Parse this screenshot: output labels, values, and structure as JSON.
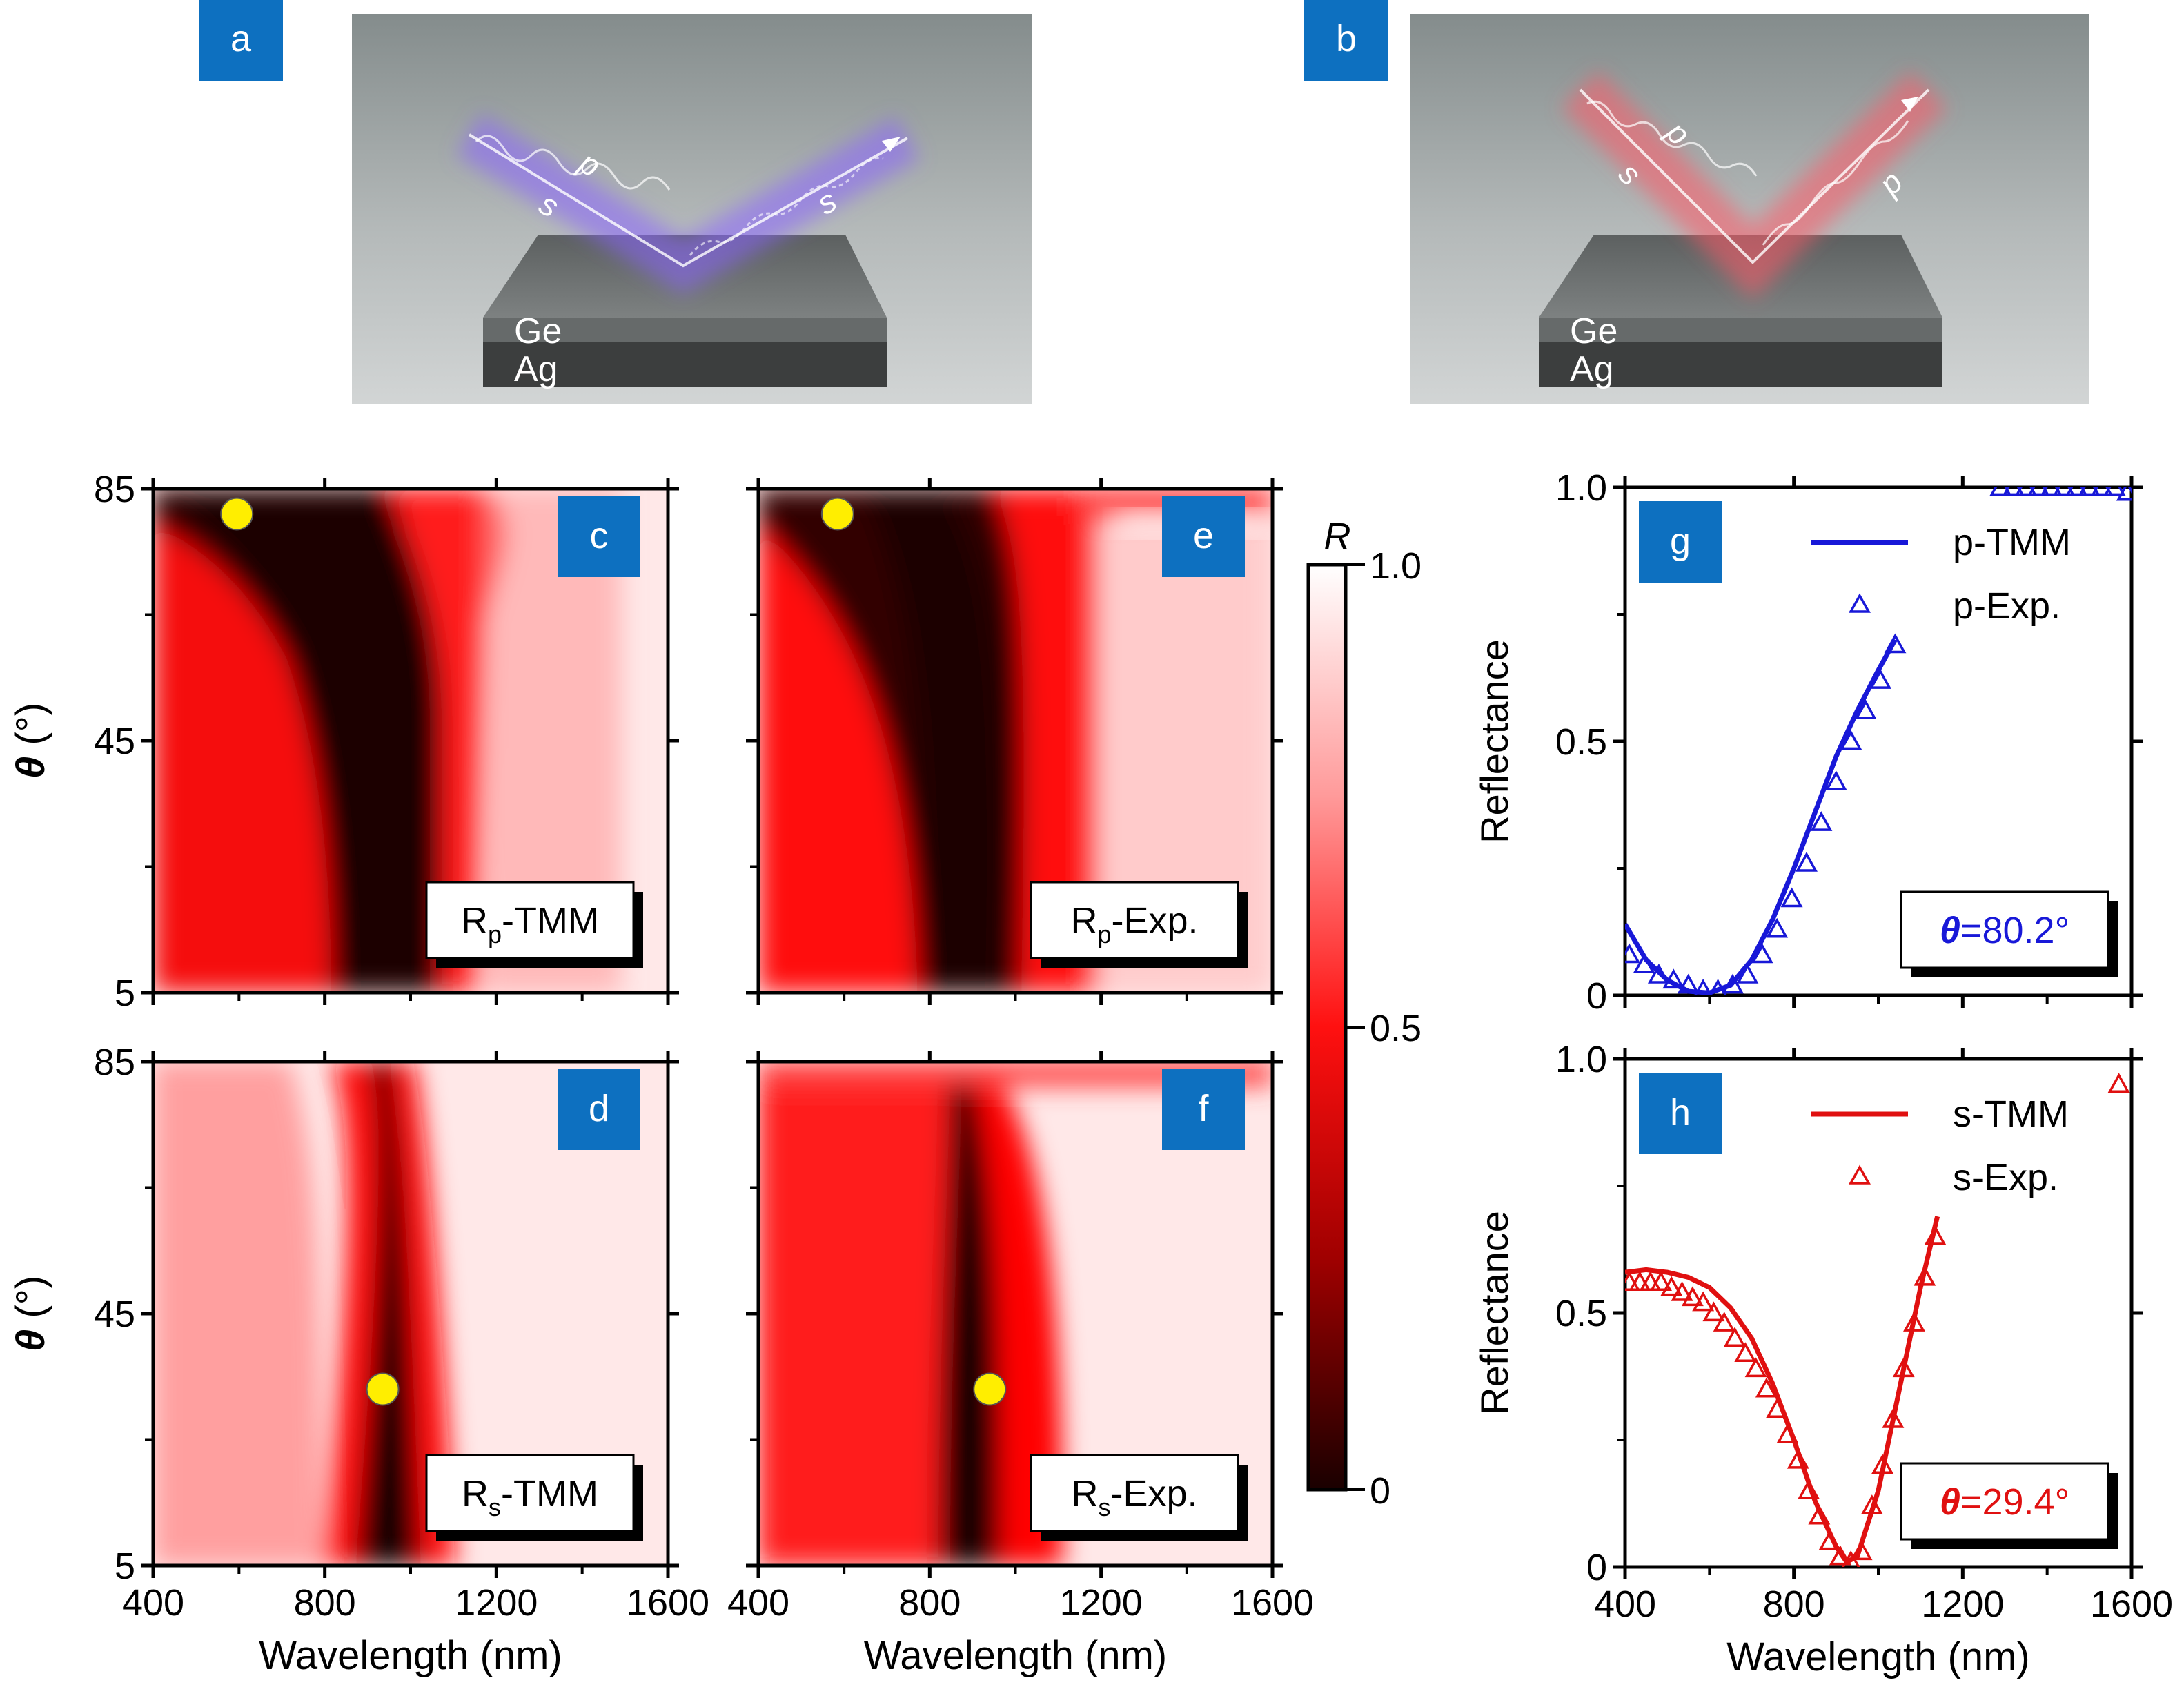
{
  "panel_letters": {
    "a": "a",
    "b": "b",
    "c": "c",
    "d": "d",
    "e": "e",
    "f": "f",
    "g": "g",
    "h": "h"
  },
  "schematic_a": {
    "incident_labels": [
      "p",
      "s"
    ],
    "reflected_label": "s",
    "layer_top": "Ge",
    "layer_bottom": "Ag",
    "beam_color": "#8a64ff"
  },
  "schematic_b": {
    "incident_labels": [
      "p",
      "s"
    ],
    "reflected_label": "p",
    "layer_top": "Ge",
    "layer_bottom": "Ag",
    "beam_color": "#ff5a66"
  },
  "colors": {
    "label_box": "#0d70c0",
    "map_dark": "#1a0000",
    "map_red": "#ff0000",
    "map_light": "#ffffff",
    "p_series": "#1818d8",
    "s_series": "#e01010"
  },
  "colorbar": {
    "label": "R",
    "ticks": [
      "1.0",
      "0.5",
      "0"
    ],
    "range": [
      0,
      1
    ]
  },
  "maps": {
    "xlabel": "Wavelength (nm)",
    "ylabel_symbol": "θ",
    "ylabel_unit": " (°)",
    "xticks": [
      "400",
      "800",
      "1200",
      "1600"
    ],
    "yticks": [
      "85",
      "45",
      "5"
    ],
    "xlim": [
      400,
      1600
    ],
    "ylim": [
      5,
      85
    ],
    "c": {
      "name_main": "R",
      "name_sub": "p",
      "name_tail": "-TMM",
      "marker": [
        595,
        81
      ]
    },
    "e": {
      "name_main": "R",
      "name_sub": "p",
      "name_tail": "-Exp.",
      "marker": [
        585,
        81
      ]
    },
    "d": {
      "name_main": "R",
      "name_sub": "s",
      "name_tail": "-TMM",
      "marker": [
        935,
        33
      ]
    },
    "f": {
      "name_main": "R",
      "name_sub": "s",
      "name_tail": "-Exp.",
      "marker": [
        940,
        33
      ]
    }
  },
  "chart_data": [
    {
      "type": "line",
      "panel": "g",
      "xlabel": "Wavelength (nm)",
      "ylabel": "Reflectance",
      "xlim": [
        400,
        1600
      ],
      "ylim": [
        0,
        1
      ],
      "xticks": [
        "400",
        "800",
        "1200",
        "1600"
      ],
      "yticks": [
        "1.0",
        "0.5",
        "0"
      ],
      "angle_symbol": "θ",
      "angle_value": "=80.2°",
      "series": [
        {
          "name": "p-TMM",
          "kind": "line",
          "x": [
            400,
            450,
            500,
            550,
            600,
            650,
            700,
            750,
            800,
            850,
            900,
            950,
            1000,
            1040
          ],
          "y": [
            0.14,
            0.07,
            0.03,
            0.008,
            0.005,
            0.02,
            0.07,
            0.15,
            0.25,
            0.36,
            0.47,
            0.56,
            0.64,
            0.7
          ]
        },
        {
          "name": "p-Exp.",
          "kind": "marker",
          "x": [
            410,
            445,
            480,
            515,
            550,
            585,
            620,
            655,
            690,
            725,
            760,
            795,
            830,
            865,
            900,
            935,
            970,
            1005,
            1040
          ],
          "y": [
            0.08,
            0.06,
            0.04,
            0.03,
            0.02,
            0.01,
            0.01,
            0.02,
            0.04,
            0.08,
            0.13,
            0.19,
            0.26,
            0.34,
            0.42,
            0.5,
            0.56,
            0.62,
            0.69
          ]
        },
        {
          "name": "",
          "kind": "marker",
          "x": [
            1290,
            1320,
            1350,
            1380,
            1410,
            1440,
            1470,
            1500,
            1530,
            1560,
            1590
          ],
          "y": [
            1.0,
            1.0,
            1.0,
            1.0,
            1.0,
            1.0,
            1.0,
            1.0,
            1.0,
            1.0,
            0.99
          ]
        }
      ]
    },
    {
      "type": "line",
      "panel": "h",
      "xlabel": "Wavelength (nm)",
      "ylabel": "Reflectance",
      "xlim": [
        400,
        1600
      ],
      "ylim": [
        0,
        1
      ],
      "xticks": [
        "400",
        "800",
        "1200",
        "1600"
      ],
      "yticks": [
        "1.0",
        "0.5",
        "0"
      ],
      "angle_symbol": "θ",
      "angle_value": "=29.4°",
      "series": [
        {
          "name": "s-TMM",
          "kind": "line",
          "x": [
            400,
            450,
            500,
            550,
            600,
            650,
            700,
            750,
            800,
            850,
            900,
            925,
            950,
            1000,
            1050,
            1100,
            1140
          ],
          "y": [
            0.58,
            0.585,
            0.58,
            0.57,
            0.55,
            0.51,
            0.45,
            0.36,
            0.25,
            0.13,
            0.04,
            0.01,
            0.02,
            0.15,
            0.35,
            0.55,
            0.69
          ]
        },
        {
          "name": "s-Exp.",
          "kind": "marker",
          "x": [
            410,
            435,
            460,
            485,
            510,
            535,
            560,
            585,
            610,
            635,
            660,
            685,
            710,
            735,
            760,
            785,
            810,
            835,
            860,
            885,
            910,
            935,
            960,
            985,
            1010,
            1035,
            1060,
            1085,
            1110,
            1135
          ],
          "y": [
            0.56,
            0.56,
            0.56,
            0.56,
            0.55,
            0.54,
            0.53,
            0.52,
            0.5,
            0.48,
            0.45,
            0.42,
            0.39,
            0.35,
            0.31,
            0.26,
            0.21,
            0.15,
            0.1,
            0.05,
            0.02,
            0.01,
            0.03,
            0.12,
            0.2,
            0.29,
            0.39,
            0.48,
            0.57,
            0.65
          ]
        },
        {
          "name": "",
          "kind": "marker",
          "x": [
            1570
          ],
          "y": [
            0.95
          ]
        }
      ]
    }
  ]
}
